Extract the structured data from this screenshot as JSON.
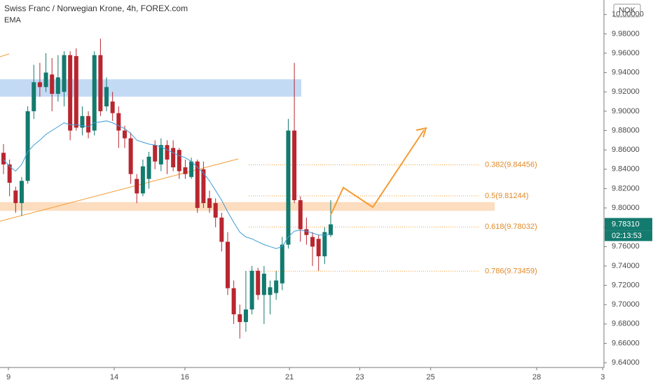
{
  "chart_data": {
    "type": "candlestick",
    "title": "Swiss Franc / Norwegian Krone, 4h, FOREX.com",
    "indicator": "EMA",
    "currency": "NOK",
    "up_color": "#137a6e",
    "down_color": "#b8262f",
    "ema_color": "#3d9bd6",
    "xlim": [
      -0.58,
      99.1
    ],
    "xticks": [
      {
        "value": 0.81,
        "label": "9"
      },
      {
        "value": 18.27,
        "label": "14"
      },
      {
        "value": 29.94,
        "label": "16"
      },
      {
        "value": 47.2,
        "label": "21"
      },
      {
        "value": 58.8,
        "label": "23"
      },
      {
        "value": 70.5,
        "label": "25"
      },
      {
        "value": 88.0,
        "label": "28"
      },
      {
        "value": 98.9,
        "label": "3"
      }
    ],
    "ylim": [
      9.635,
      10.015
    ],
    "yticks": [
      {
        "value": 9.64,
        "label": "9.64000"
      },
      {
        "value": 9.66,
        "label": "9.66000"
      },
      {
        "value": 9.68,
        "label": "9.68000"
      },
      {
        "value": 9.7,
        "label": "9.70000"
      },
      {
        "value": 9.72,
        "label": "9.72000"
      },
      {
        "value": 9.74,
        "label": "9.74000"
      },
      {
        "value": 9.76,
        "label": "9.76000"
      },
      {
        "value": 9.78,
        "label": "9.78000"
      },
      {
        "value": 9.8,
        "label": "9.80000"
      },
      {
        "value": 9.82,
        "label": "9.82000"
      },
      {
        "value": 9.84,
        "label": "9.84000"
      },
      {
        "value": 9.86,
        "label": "9.86000"
      },
      {
        "value": 9.88,
        "label": "9.88000"
      },
      {
        "value": 9.9,
        "label": "9.90000"
      },
      {
        "value": 9.92,
        "label": "9.92000"
      },
      {
        "value": 9.94,
        "label": "9.94000"
      },
      {
        "value": 9.96,
        "label": "9.96000"
      },
      {
        "value": 9.98,
        "label": "9.98000"
      },
      {
        "value": 10.0,
        "label": "10.00000"
      }
    ],
    "open": [
      9.857,
      9.845,
      9.818,
      9.805,
      9.828,
      9.9,
      9.93,
      9.925,
      9.938,
      9.918,
      9.92,
      9.958,
      9.957,
      9.883,
      9.895,
      9.88,
      9.958,
      9.905,
      9.91,
      9.898,
      9.88,
      9.872,
      9.83,
      9.815,
      9.83,
      9.865,
      9.845,
      9.865,
      9.862,
      9.86,
      9.842,
      9.832,
      9.848,
      9.84,
      9.81,
      9.805,
      9.79,
      9.765,
      9.717,
      9.69,
      9.682,
      9.695,
      9.735,
      9.71,
      9.71,
      9.712,
      9.722,
      9.762,
      9.88,
      9.808,
      9.778,
      9.77,
      9.768,
      9.75,
      9.772
    ],
    "high": [
      9.866,
      9.85,
      9.822,
      9.832,
      9.905,
      9.948,
      9.95,
      9.96,
      9.955,
      9.958,
      9.962,
      9.962,
      9.965,
      9.905,
      9.9,
      9.962,
      9.975,
      9.935,
      9.92,
      9.905,
      9.885,
      9.878,
      9.835,
      9.85,
      9.858,
      9.87,
      9.872,
      9.87,
      9.87,
      9.862,
      9.85,
      9.852,
      9.85,
      9.848,
      9.818,
      9.81,
      9.795,
      9.775,
      9.725,
      9.7,
      9.735,
      9.74,
      9.738,
      9.74,
      9.725,
      9.735,
      9.77,
      9.892,
      9.95,
      9.812,
      9.79,
      9.775,
      9.772,
      9.78,
      9.808
    ],
    "low": [
      9.835,
      9.812,
      9.795,
      9.792,
      9.825,
      9.892,
      9.915,
      9.92,
      9.9,
      9.91,
      9.905,
      9.87,
      9.88,
      9.875,
      9.872,
      9.875,
      9.895,
      9.9,
      9.89,
      9.862,
      9.862,
      9.825,
      9.805,
      9.812,
      9.82,
      9.84,
      9.838,
      9.835,
      9.838,
      9.83,
      9.83,
      9.83,
      9.795,
      9.8,
      9.795,
      9.78,
      9.755,
      9.71,
      9.68,
      9.665,
      9.672,
      9.69,
      9.705,
      9.68,
      9.69,
      9.705,
      9.715,
      9.758,
      9.805,
      9.765,
      9.762,
      9.74,
      9.735,
      9.742,
      9.77
    ],
    "close": [
      9.845,
      9.826,
      9.805,
      9.828,
      9.9,
      9.93,
      9.925,
      9.94,
      9.918,
      9.935,
      9.958,
      9.88,
      9.883,
      9.895,
      9.878,
      9.958,
      9.9,
      9.925,
      9.898,
      9.88,
      9.872,
      9.835,
      9.815,
      9.843,
      9.853,
      9.848,
      9.865,
      9.85,
      9.842,
      9.838,
      9.835,
      9.848,
      9.8,
      9.805,
      9.8,
      9.79,
      9.765,
      9.717,
      9.69,
      9.682,
      9.695,
      9.735,
      9.71,
      9.732,
      9.718,
      9.725,
      9.762,
      9.88,
      9.808,
      9.778,
      9.772,
      9.76,
      9.75,
      9.775,
      9.783
    ],
    "ema": [
      9.85,
      9.843,
      9.838,
      9.845,
      9.858,
      9.865,
      9.87,
      9.876,
      9.88,
      9.884,
      9.888,
      9.886,
      9.886,
      9.885,
      9.884,
      9.888,
      9.889,
      9.89,
      9.888,
      9.885,
      9.882,
      9.877,
      9.87,
      9.868,
      9.866,
      9.865,
      9.863,
      9.86,
      9.857,
      9.854,
      9.852,
      9.848,
      9.842,
      9.836,
      9.828,
      9.818,
      9.808,
      9.796,
      9.785,
      9.775,
      9.77,
      9.768,
      9.765,
      9.762,
      9.76,
      9.758,
      9.76,
      9.77,
      9.776,
      9.777,
      9.776,
      9.774,
      9.772,
      9.772,
      9.773
    ],
    "zones": [
      {
        "low": 9.915,
        "high": 9.933,
        "color": "#b9d3f3"
      },
      {
        "low": 9.797,
        "high": 9.806,
        "color": "#fbd7b4"
      }
    ],
    "fib_levels": [
      {
        "label": "0.382(9.84456)",
        "price": 9.84456
      },
      {
        "label": "0.5(9.81244)",
        "price": 9.81244
      },
      {
        "label": "0.618(9.78032)",
        "price": 9.78032
      },
      {
        "label": "0.786(9.73459)",
        "price": 9.73459
      }
    ],
    "last_price": {
      "value": 9.7831,
      "label": "9.78310"
    },
    "countdown": "02:13:53"
  }
}
